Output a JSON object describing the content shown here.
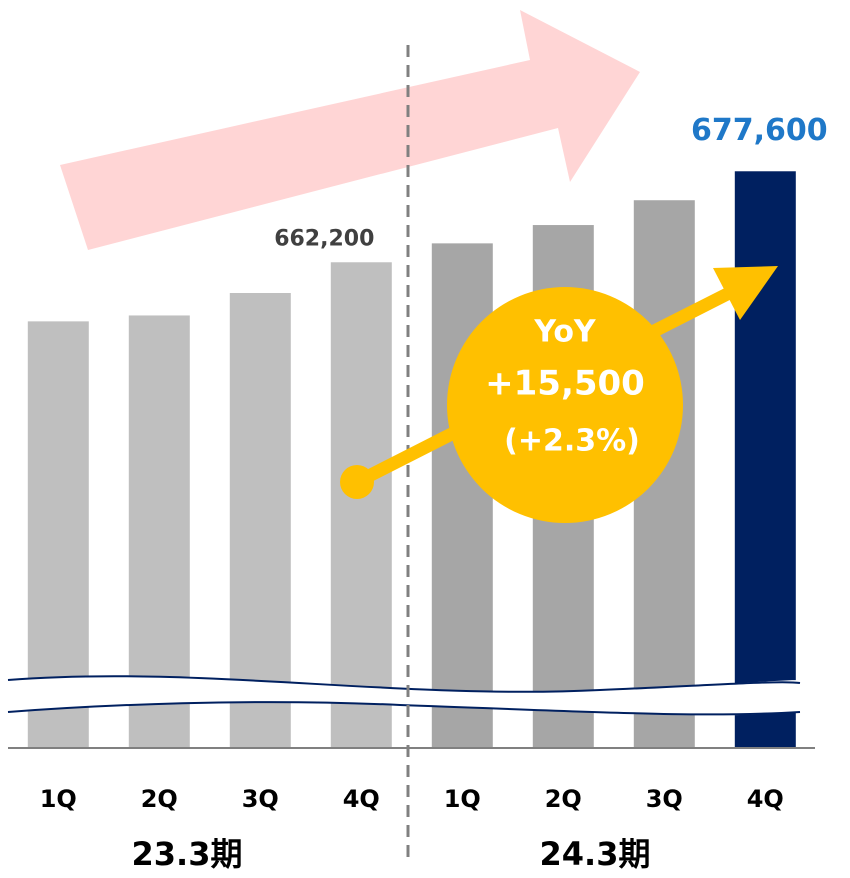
{
  "chart_data": {
    "type": "bar",
    "categories": [
      "1Q",
      "2Q",
      "3Q",
      "4Q",
      "1Q",
      "2Q",
      "3Q",
      "4Q"
    ],
    "groups": [
      "23.3期",
      "24.3期"
    ],
    "values": [
      652200,
      653200,
      657000,
      662200,
      665400,
      668500,
      672700,
      677600
    ],
    "value_labels": [
      null,
      null,
      null,
      "662,200",
      null,
      null,
      null,
      "677,600"
    ],
    "colors": [
      "#bfbfbf",
      "#bfbfbf",
      "#bfbfbf",
      "#bfbfbf",
      "#a6a6a6",
      "#a6a6a6",
      "#a6a6a6",
      "#002060"
    ],
    "ylim": [
      580000,
      690000
    ],
    "annotations": [
      "YoY",
      "+15,500",
      "(+2.3%)"
    ]
  }
}
